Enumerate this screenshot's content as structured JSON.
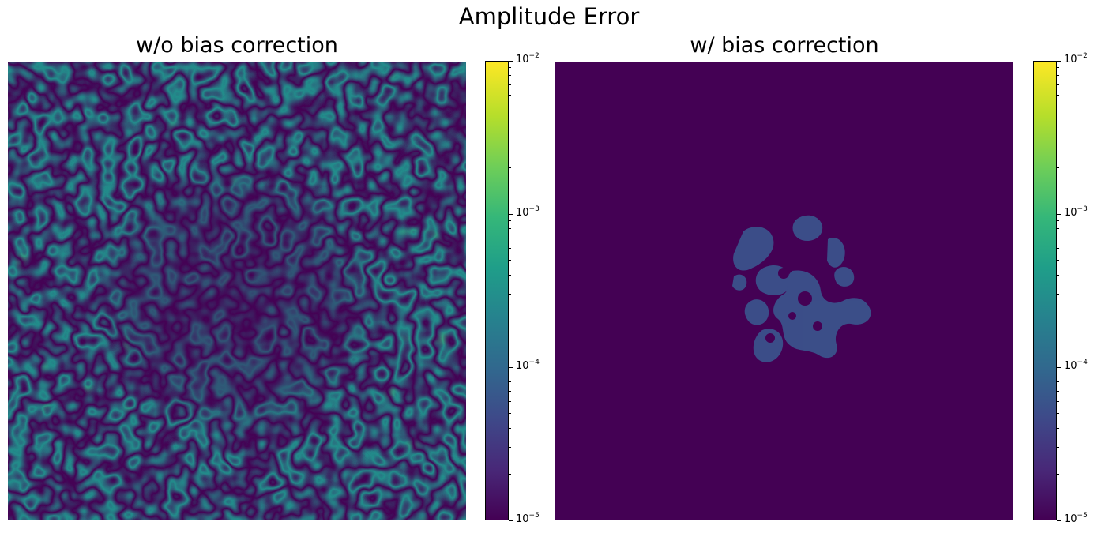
{
  "chart_data": [
    {
      "type": "heatmap",
      "title": "w/o bias correction",
      "colorbar": {
        "scale": "log",
        "range": [
          1e-05,
          0.01
        ],
        "colormap": "viridis",
        "ticks": [
          {
            "base": "10",
            "exp": "−2",
            "value": 0.01
          },
          {
            "base": "10",
            "exp": "−3",
            "value": 0.001
          },
          {
            "base": "10",
            "exp": "−4",
            "value": 0.0001
          },
          {
            "base": "10",
            "exp": "−5",
            "value": 1e-05
          }
        ]
      },
      "field_description_values": {
        "typical_outer": 0.0003,
        "typical_center_floor": 1e-05,
        "peak": 0.002
      }
    },
    {
      "type": "heatmap",
      "title": "w/ bias correction",
      "colorbar": {
        "scale": "log",
        "range": [
          1e-05,
          0.01
        ],
        "colormap": "viridis",
        "ticks": [
          {
            "base": "10",
            "exp": "−2",
            "value": 0.01
          },
          {
            "base": "10",
            "exp": "−3",
            "value": 0.001
          },
          {
            "base": "10",
            "exp": "−4",
            "value": 0.0001
          },
          {
            "base": "10",
            "exp": "−5",
            "value": 1e-05
          }
        ]
      },
      "field_description_values": {
        "background": 1e-05,
        "central_blob": 0.0001
      }
    }
  ],
  "figure": {
    "suptitle": "Amplitude Error"
  }
}
